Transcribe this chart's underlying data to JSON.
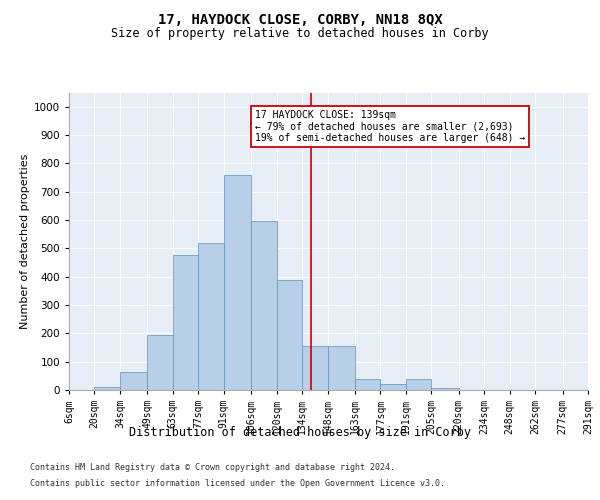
{
  "title": "17, HAYDOCK CLOSE, CORBY, NN18 8QX",
  "subtitle": "Size of property relative to detached houses in Corby",
  "xlabel": "Distribution of detached houses by size in Corby",
  "ylabel": "Number of detached properties",
  "footer_line1": "Contains HM Land Registry data © Crown copyright and database right 2024.",
  "footer_line2": "Contains public sector information licensed under the Open Government Licence v3.0.",
  "annotation_title": "17 HAYDOCK CLOSE: 139sqm",
  "annotation_line1": "← 79% of detached houses are smaller (2,693)",
  "annotation_line2": "19% of semi-detached houses are larger (648) →",
  "property_sqm": 139,
  "bin_edges": [
    6,
    20,
    34,
    49,
    63,
    77,
    91,
    106,
    120,
    134,
    148,
    163,
    177,
    191,
    205,
    220,
    234,
    248,
    262,
    277,
    291
  ],
  "bar_heights": [
    0,
    10,
    65,
    195,
    475,
    520,
    760,
    595,
    390,
    155,
    155,
    40,
    22,
    40,
    8,
    0,
    0,
    0,
    0,
    0
  ],
  "bar_color": "#b8cfe8",
  "bar_edge_color": "#6090c0",
  "vline_color": "#cc0000",
  "background_color": "#e8eef6",
  "ylim": [
    0,
    1050
  ],
  "yticks": [
    0,
    100,
    200,
    300,
    400,
    500,
    600,
    700,
    800,
    900,
    1000
  ],
  "title_fontsize": 10,
  "subtitle_fontsize": 8.5,
  "ylabel_fontsize": 8,
  "xlabel_fontsize": 8.5,
  "tick_fontsize": 7,
  "footer_fontsize": 6,
  "annotation_fontsize": 7
}
